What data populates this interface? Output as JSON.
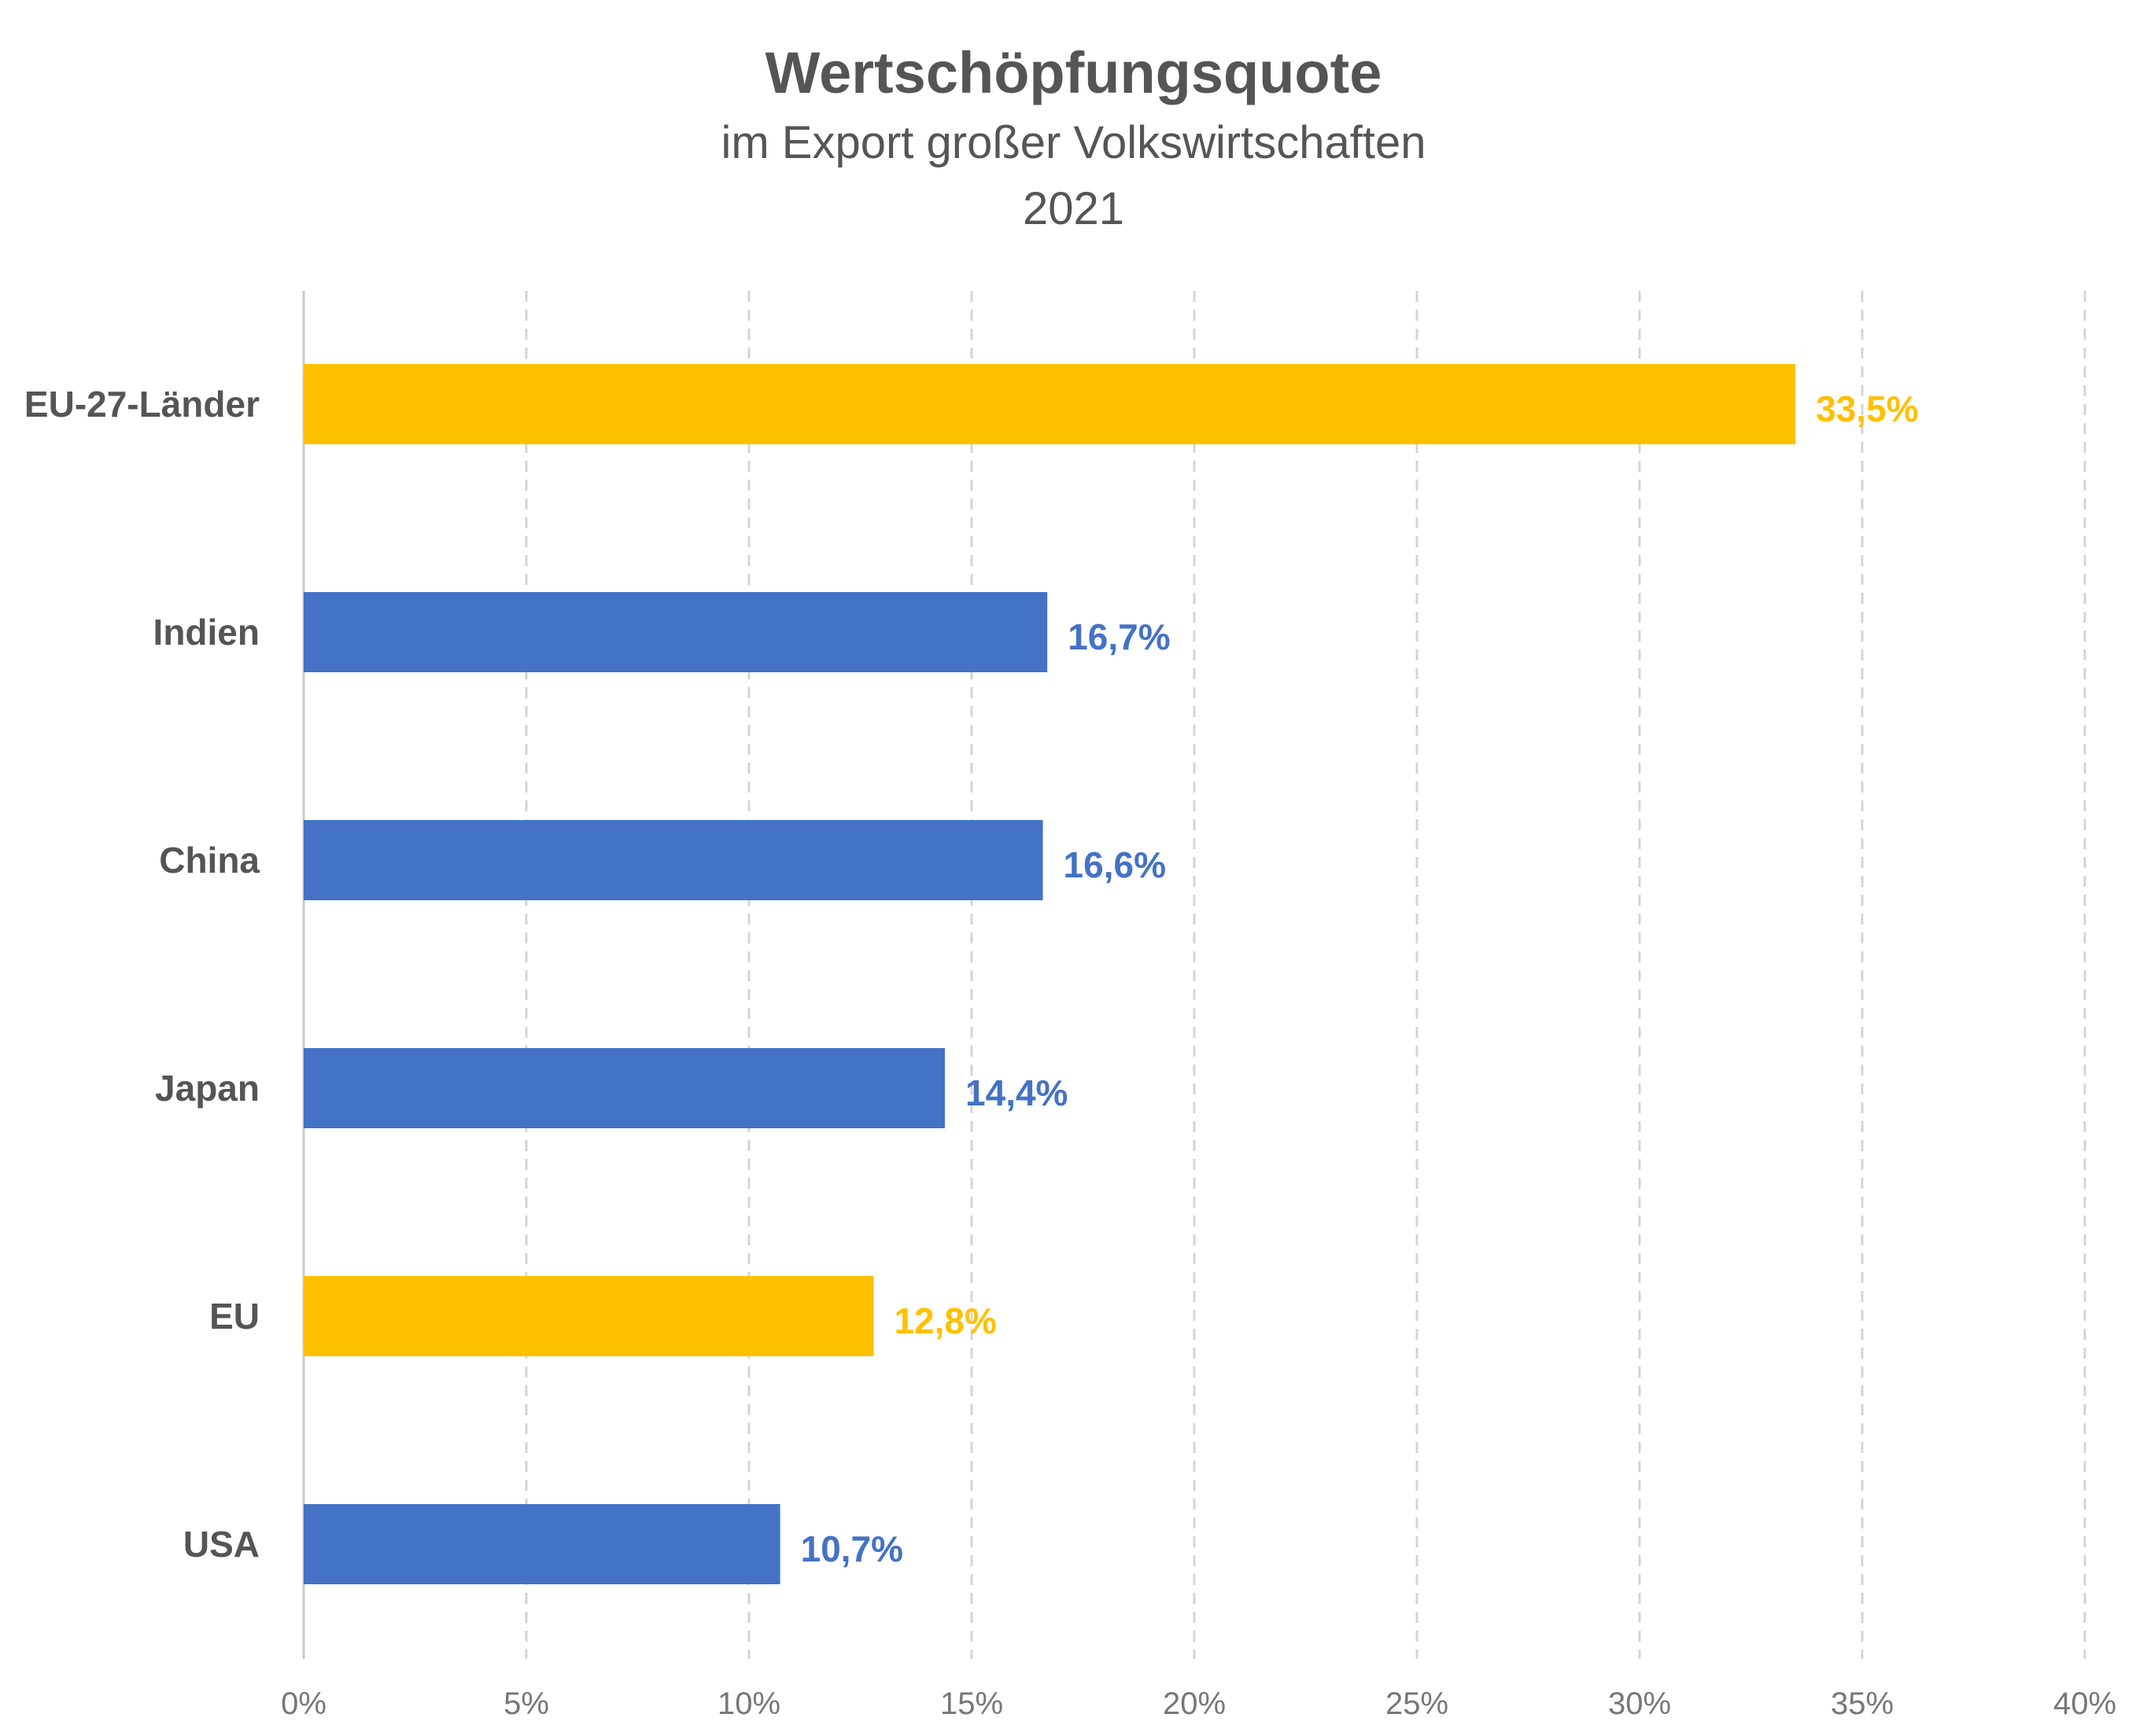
{
  "chart_data": {
    "type": "bar",
    "orientation": "horizontal",
    "title": "Wertschöpfungsquote",
    "subtitle": "im Export großer Volkswirtschaften",
    "period": "2021",
    "categories": [
      "EU-27-Länder",
      "Indien",
      "China",
      "Japan",
      "EU",
      "USA"
    ],
    "values": [
      33.5,
      16.7,
      16.6,
      14.4,
      12.8,
      10.7
    ],
    "value_labels": [
      "33,5%",
      "16,7%",
      "16,6%",
      "14,4%",
      "12,8%",
      "10,7%"
    ],
    "bar_colors": [
      "#FFC000",
      "#4472C4",
      "#4472C4",
      "#4472C4",
      "#FFC000",
      "#4472C4"
    ],
    "xlim": [
      0,
      40
    ],
    "xticks": [
      0,
      5,
      10,
      15,
      20,
      25,
      30,
      35,
      40
    ],
    "xtick_labels": [
      "0%",
      "5%",
      "10%",
      "15%",
      "20%",
      "25%",
      "30%",
      "35%",
      "40%"
    ],
    "grid": "vertical dashed",
    "legend": "none"
  }
}
